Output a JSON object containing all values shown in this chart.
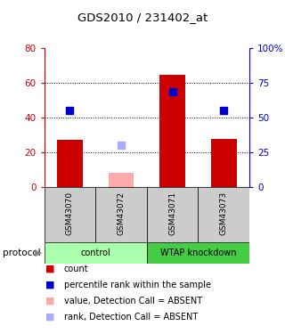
{
  "title": "GDS2010 / 231402_at",
  "samples": [
    "GSM43070",
    "GSM43072",
    "GSM43071",
    "GSM43073"
  ],
  "bar_values": [
    27,
    8,
    65,
    28
  ],
  "bar_colors": [
    "#cc0000",
    "#ffaaaa",
    "#cc0000",
    "#cc0000"
  ],
  "rank_values": [
    44,
    24,
    55,
    44
  ],
  "rank_colors": [
    "#0000cc",
    "#aaaaff",
    "#0000cc",
    "#0000cc"
  ],
  "absent_flags": [
    false,
    true,
    false,
    false
  ],
  "ylim_left": [
    0,
    80
  ],
  "ylim_right": [
    0,
    100
  ],
  "yticks_left": [
    0,
    20,
    40,
    60,
    80
  ],
  "ytick_labels_right": [
    "0",
    "25",
    "50",
    "75",
    "100%"
  ],
  "groups": [
    {
      "label": "control",
      "samples": [
        0,
        1
      ],
      "color": "#aaffaa"
    },
    {
      "label": "WTAP knockdown",
      "samples": [
        2,
        3
      ],
      "color": "#44cc44"
    }
  ],
  "protocol_label": "protocol",
  "legend_items": [
    {
      "color": "#cc0000",
      "label": "count"
    },
    {
      "color": "#0000cc",
      "label": "percentile rank within the sample"
    },
    {
      "color": "#ffaaaa",
      "label": "value, Detection Call = ABSENT"
    },
    {
      "color": "#aaaaff",
      "label": "rank, Detection Call = ABSENT"
    }
  ],
  "rank_marker_size": 6,
  "background_color": "#ffffff",
  "left_axis_color": "#cc0000",
  "right_axis_color": "#0000cc"
}
